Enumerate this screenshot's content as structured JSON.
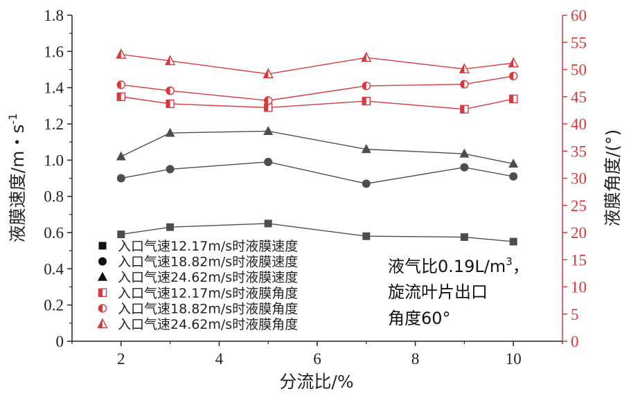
{
  "chart_data": {
    "type": "line",
    "xlabel": "分流比/%",
    "ylabel": "液膜速度/m・s",
    "ylabel_sup": "-1",
    "y2label": "液膜角度/(°)",
    "xlim": [
      1,
      11
    ],
    "ylim": [
      0,
      1.8
    ],
    "y2lim": [
      0,
      60
    ],
    "x_ticks": [
      2,
      4,
      6,
      8,
      10
    ],
    "x_tick_labels": [
      "2",
      "4",
      "6",
      "8",
      "10"
    ],
    "y_ticks": [
      0,
      0.2,
      0.4,
      0.6,
      0.8,
      1.0,
      1.2,
      1.4,
      1.6,
      1.8
    ],
    "y_tick_labels": [
      "0",
      "0.2",
      "0.4",
      "0.6",
      "0.8",
      "1.0",
      "1.2",
      "1.4",
      "1.6",
      "1.8"
    ],
    "y2_ticks": [
      0,
      5,
      10,
      15,
      20,
      25,
      30,
      35,
      40,
      45,
      50,
      55,
      60
    ],
    "y2_tick_labels": [
      "0",
      "5",
      "10",
      "15",
      "20",
      "25",
      "30",
      "35",
      "40",
      "45",
      "50",
      "55",
      "60"
    ],
    "x": [
      2,
      3,
      5,
      7,
      9,
      10
    ],
    "series": [
      {
        "name": "入口气速12.17m/s时液膜速度",
        "axis": "left",
        "marker": "square",
        "color": "#4d4d4d",
        "values": [
          0.59,
          0.63,
          0.65,
          0.58,
          0.575,
          0.55
        ]
      },
      {
        "name": "入口气速18.82m/s时液膜速度",
        "axis": "left",
        "marker": "circle",
        "color": "#4d4d4d",
        "values": [
          0.9,
          0.95,
          0.99,
          0.87,
          0.96,
          0.91
        ]
      },
      {
        "name": "入口气速24.62m/s时液膜速度",
        "axis": "left",
        "marker": "triangle",
        "color": "#4d4d4d",
        "values": [
          1.02,
          1.15,
          1.16,
          1.06,
          1.035,
          0.98
        ]
      },
      {
        "name": "入口气速12.17m/s时液膜角度",
        "axis": "right",
        "marker": "half-square",
        "color": "#d9393b",
        "values": [
          45.0,
          43.7,
          43.0,
          44.2,
          42.7,
          44.6
        ]
      },
      {
        "name": "入口气速18.82m/s时液膜角度",
        "axis": "right",
        "marker": "half-circle",
        "color": "#d9393b",
        "values": [
          47.2,
          46.1,
          44.3,
          47.0,
          47.3,
          48.8
        ]
      },
      {
        "name": "入口气速24.62m/s时液膜角度",
        "axis": "right",
        "marker": "half-triangle",
        "color": "#d9393b",
        "values": [
          52.8,
          51.6,
          49.2,
          52.2,
          50.1,
          51.2
        ]
      }
    ],
    "annotation_lines": [
      "液气比0.19L/m",
      "旋流叶片出口",
      "角度60°"
    ],
    "annotation_sup": "3",
    "annotation_line1_suffix": "，",
    "legend_placement": "bottom-left",
    "grid": false
  }
}
